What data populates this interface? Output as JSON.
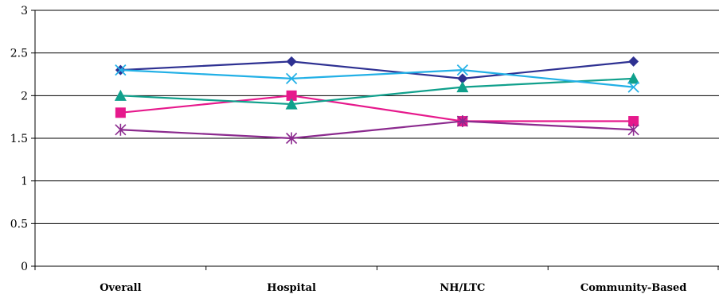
{
  "chart_data": {
    "type": "line",
    "categories": [
      "Overall",
      "Hospital",
      "NH/LTC",
      "Community-Based"
    ],
    "ylim": [
      0,
      3
    ],
    "yticks": [
      "0",
      "0.5",
      "1",
      "1.5",
      "2",
      "2.5",
      "3"
    ],
    "grid": true,
    "legend": "none",
    "series": [
      {
        "values": [
          2.3,
          2.4,
          2.2,
          2.4
        ],
        "color": "#2e3192",
        "marker": "diamond"
      },
      {
        "values": [
          1.8,
          2.0,
          1.7,
          1.7
        ],
        "color": "#e6198c",
        "marker": "square"
      },
      {
        "values": [
          2.0,
          1.9,
          2.1,
          2.2
        ],
        "color": "#10a08c",
        "marker": "triangle"
      },
      {
        "values": [
          2.3,
          2.2,
          2.3,
          2.1
        ],
        "color": "#22b0e6",
        "marker": "x"
      },
      {
        "values": [
          1.6,
          1.5,
          1.7,
          1.6
        ],
        "color": "#8b2a8e",
        "marker": "asterisk"
      }
    ]
  }
}
